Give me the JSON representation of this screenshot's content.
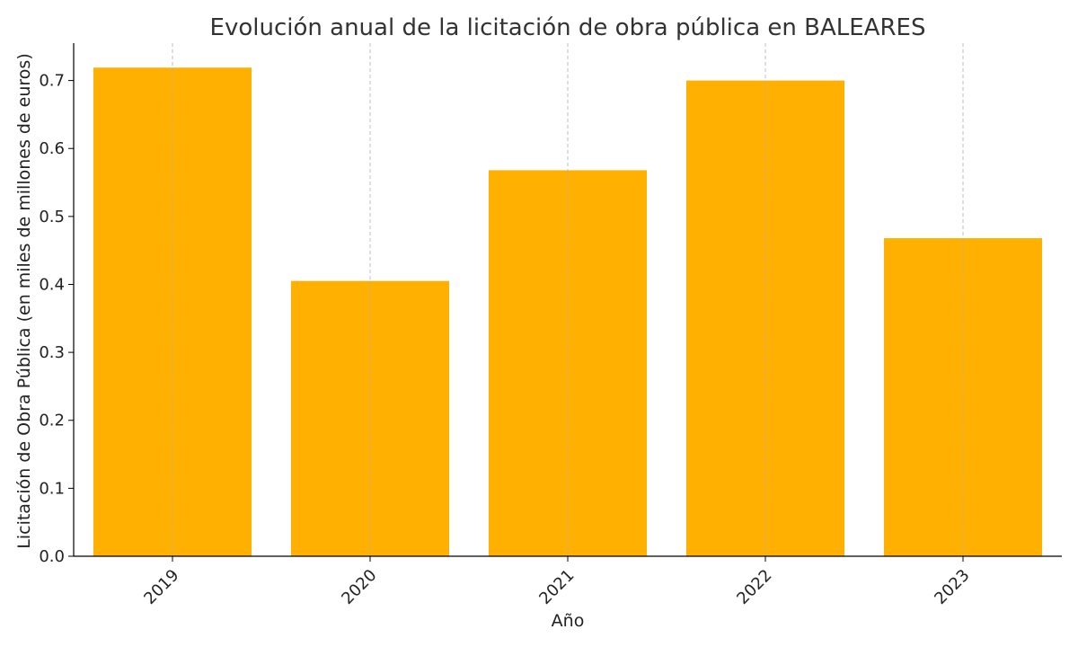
{
  "chart_data": {
    "type": "bar",
    "title": "Evolución anual de la licitación de obra pública en BALEARES",
    "xlabel": "Año",
    "ylabel": "Licitación de Obra Pública (en miles de millones de euros)",
    "categories": [
      "2019",
      "2020",
      "2021",
      "2022",
      "2023"
    ],
    "values": [
      0.719,
      0.405,
      0.568,
      0.7,
      0.468
    ],
    "ylim": [
      0,
      0.755
    ],
    "yticks": [
      0.0,
      0.1,
      0.2,
      0.3,
      0.4,
      0.5,
      0.6,
      0.7
    ],
    "ytick_labels": [
      "0.0",
      "0.1",
      "0.2",
      "0.3",
      "0.4",
      "0.5",
      "0.6",
      "0.7"
    ],
    "bar_color": "#FFB000",
    "grid": "vertical dashed",
    "xtick_rotation": "45 degrees"
  }
}
